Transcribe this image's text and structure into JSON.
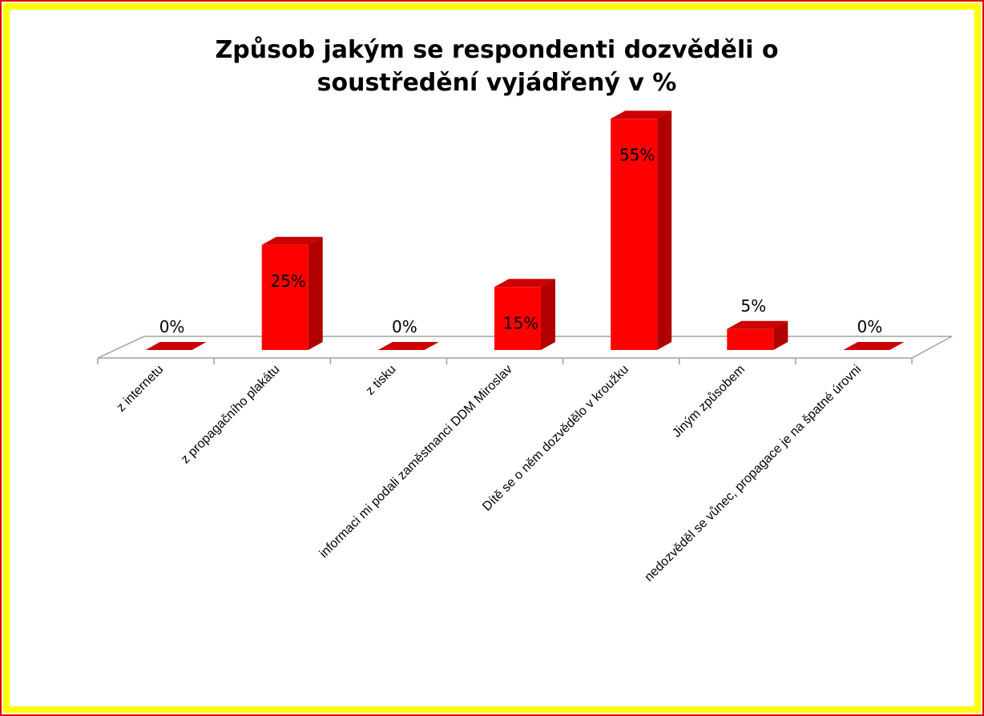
{
  "chart_data": {
    "type": "bar3d",
    "title": [
      "Způsob jakým se respondenti dozvěděli o",
      "soustředění vyjádřený v %"
    ],
    "categories": [
      "z internetu",
      "z propagačního plakátu",
      "z tisku",
      "informaci mi podali zaměstnanci DDM Miroslav",
      "Dítě se o něm dozvědělo v kroužku",
      "Jiným způsobem",
      "nedozvěděl se vůnec, propagace je na špatné úrovni"
    ],
    "values": [
      0,
      25,
      0,
      15,
      55,
      5,
      0
    ],
    "value_labels": [
      "0%",
      "25%",
      "0%",
      "15%",
      "55%",
      "5%",
      "0%"
    ],
    "color": "#ff0000"
  }
}
